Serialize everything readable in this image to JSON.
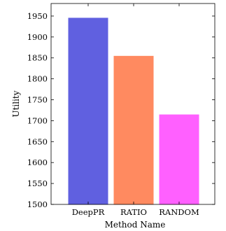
{
  "chart_data": {
    "type": "bar",
    "categories": [
      "DeepPR",
      "RATIO",
      "RANDOM"
    ],
    "values": [
      1945,
      1854,
      1714
    ],
    "colors": [
      "#6060e0",
      "#ff8a60",
      "#ff60ff"
    ],
    "xlabel": "Method Name",
    "ylabel": "Utility",
    "ylim": [
      1500,
      1980
    ],
    "yticks": [
      1500,
      1550,
      1600,
      1650,
      1700,
      1750,
      1800,
      1850,
      1900,
      1950
    ],
    "grid": false,
    "legend": "none"
  }
}
